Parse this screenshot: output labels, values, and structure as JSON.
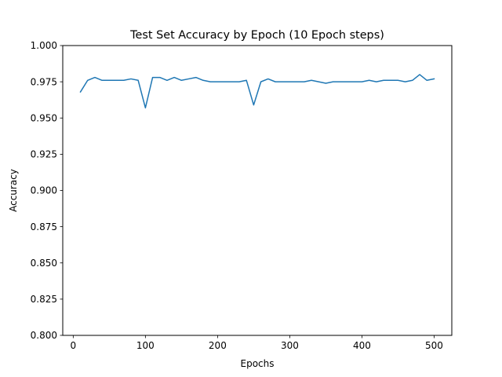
{
  "chart_data": {
    "type": "line",
    "title": "Test Set Accuracy by Epoch (10 Epoch steps)",
    "xlabel": "Epochs",
    "ylabel": "Accuracy",
    "xlim": [
      -14.5,
      524.5
    ],
    "ylim": [
      0.8,
      1.0
    ],
    "xticks": [
      0,
      100,
      200,
      300,
      400,
      500
    ],
    "xtick_labels": [
      "0",
      "100",
      "200",
      "300",
      "400",
      "500"
    ],
    "yticks": [
      0.8,
      0.825,
      0.85,
      0.875,
      0.9,
      0.925,
      0.95,
      0.975,
      1.0
    ],
    "ytick_labels": [
      "0.800",
      "0.825",
      "0.850",
      "0.875",
      "0.900",
      "0.925",
      "0.950",
      "0.975",
      "1.000"
    ],
    "grid": false,
    "legend": "none",
    "series": [
      {
        "color": "#1f77b4",
        "x": [
          10,
          20,
          30,
          40,
          50,
          60,
          70,
          80,
          90,
          100,
          110,
          120,
          130,
          140,
          150,
          160,
          170,
          180,
          190,
          200,
          210,
          220,
          230,
          240,
          250,
          260,
          270,
          280,
          290,
          300,
          310,
          320,
          330,
          340,
          350,
          360,
          370,
          380,
          390,
          400,
          410,
          420,
          430,
          440,
          450,
          460,
          470,
          480,
          490,
          500
        ],
        "y": [
          0.968,
          0.976,
          0.978,
          0.976,
          0.976,
          0.976,
          0.976,
          0.977,
          0.976,
          0.957,
          0.978,
          0.978,
          0.976,
          0.978,
          0.976,
          0.977,
          0.978,
          0.976,
          0.975,
          0.975,
          0.975,
          0.975,
          0.975,
          0.976,
          0.959,
          0.975,
          0.977,
          0.975,
          0.975,
          0.975,
          0.975,
          0.975,
          0.976,
          0.975,
          0.974,
          0.975,
          0.975,
          0.975,
          0.975,
          0.975,
          0.976,
          0.975,
          0.976,
          0.976,
          0.976,
          0.975,
          0.976,
          0.98,
          0.976,
          0.977
        ]
      }
    ]
  }
}
